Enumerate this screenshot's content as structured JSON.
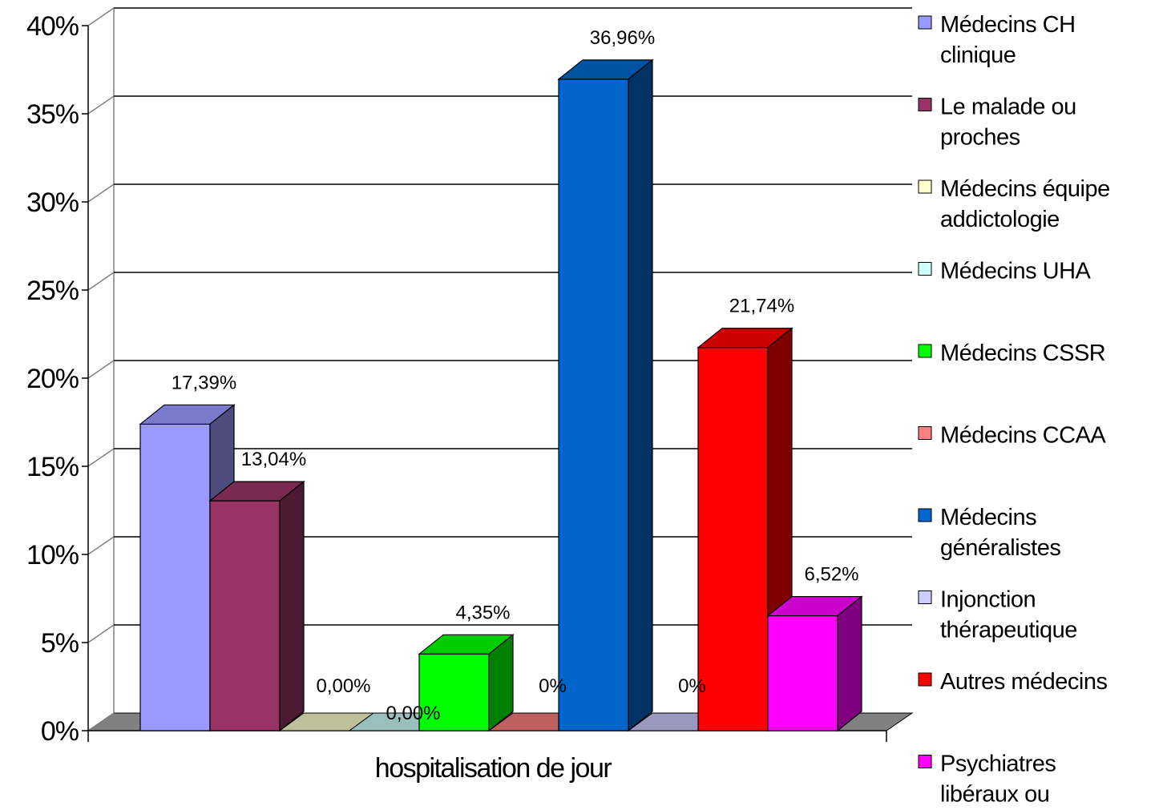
{
  "chart_data": {
    "type": "bar",
    "categories": [
      "hospitalisation de jour"
    ],
    "ylim": [
      0,
      40
    ],
    "y_ticks": [
      "0%",
      "5%",
      "10%",
      "15%",
      "20%",
      "25%",
      "30%",
      "35%",
      "40%"
    ],
    "grid": true,
    "legend_position": "right",
    "series": [
      {
        "name": "Médecins CH clinique",
        "value": 17.39,
        "label": "17,39%",
        "color": "#9999ff"
      },
      {
        "name": "Le malade ou proches",
        "value": 13.04,
        "label": "13,04%",
        "color": "#993366"
      },
      {
        "name": "Médecins équipe addictologie",
        "value": 0,
        "label": "0,00%",
        "color": "#ffffcc"
      },
      {
        "name": "Médecins UHA",
        "value": 0,
        "label": "0,00%",
        "color": "#ccffff"
      },
      {
        "name": "Médecins CSSR",
        "value": 4.35,
        "label": "4,35%",
        "color": "#00ff00"
      },
      {
        "name": "Médecins CCAA",
        "value": 0,
        "label": "0%",
        "color": "#ff8080"
      },
      {
        "name": "Médecins généralistes",
        "value": 36.96,
        "label": "36,96%",
        "color": "#0066cc"
      },
      {
        "name": "Injonction thérapeutique",
        "value": 0,
        "label": "0%",
        "color": "#ccccff"
      },
      {
        "name": "Autres médecins",
        "value": 21.74,
        "label": "21,74%",
        "color": "#ff0000"
      },
      {
        "name": "Psychiatres libéraux ou hospitaliers",
        "value": 6.52,
        "label": "6,52%",
        "color": "#ff00ff"
      }
    ]
  }
}
